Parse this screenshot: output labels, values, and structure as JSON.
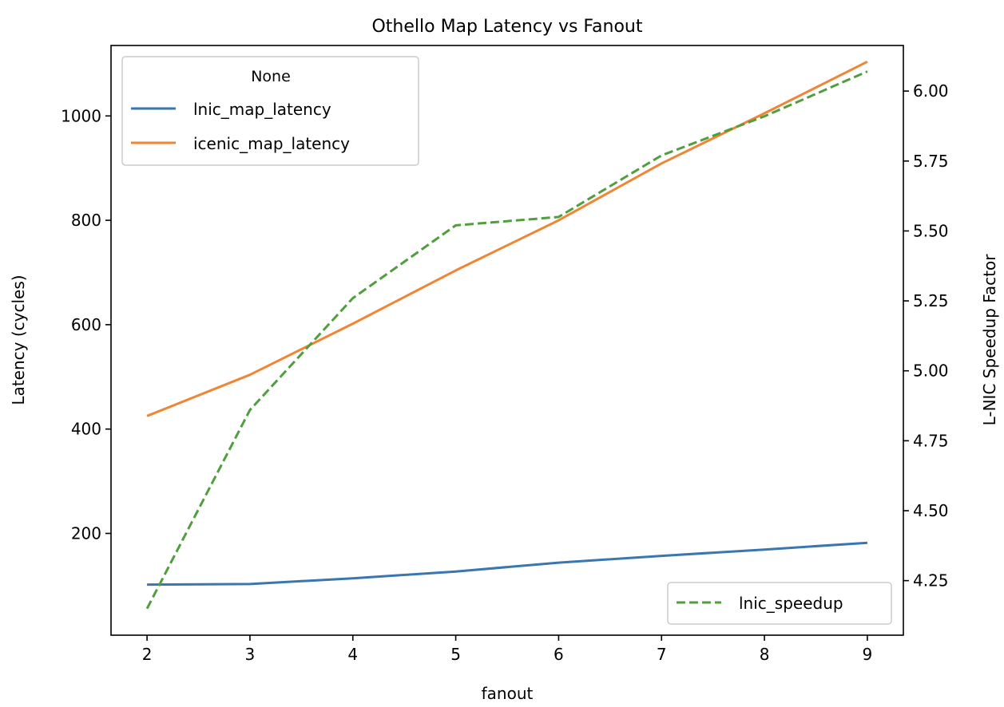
{
  "chart_data": {
    "type": "line",
    "title": "Othello Map Latency vs Fanout",
    "xlabel": "fanout",
    "ylabel": "Latency (cycles)",
    "y2label": "L-NIC Speedup Factor",
    "x": [
      2,
      3,
      4,
      5,
      6,
      7,
      8,
      9
    ],
    "xticks": [
      "2",
      "3",
      "4",
      "5",
      "6",
      "7",
      "8",
      "9"
    ],
    "xlim": [
      1.65,
      9.35
    ],
    "ylim": [
      5,
      1135
    ],
    "yticks": [
      200,
      400,
      600,
      800,
      1000
    ],
    "y2lim": [
      4.055,
      6.163
    ],
    "y2ticks": [
      "4.25",
      "4.50",
      "4.75",
      "5.00",
      "5.25",
      "5.50",
      "5.75",
      "6.00"
    ],
    "grid": false,
    "legend_left": {
      "title": "None",
      "placement": "upper left",
      "entries": [
        "lnic_map_latency",
        "icenic_map_latency"
      ]
    },
    "legend_right": {
      "placement": "lower right",
      "entries": [
        "lnic_speedup"
      ]
    },
    "series": [
      {
        "name": "lnic_map_latency",
        "axis": "left",
        "color": "#3a76af",
        "dash": "solid",
        "values": [
          102,
          103,
          114,
          127,
          144,
          157,
          169,
          182
        ]
      },
      {
        "name": "icenic_map_latency",
        "axis": "left",
        "color": "#ef8636",
        "dash": "solid",
        "values": [
          425,
          504,
          602,
          704,
          800,
          909,
          1005,
          1104
        ]
      },
      {
        "name": "lnic_speedup",
        "axis": "right",
        "color": "#519e3e",
        "dash": "dashed",
        "values": [
          4.15,
          4.86,
          5.26,
          5.52,
          5.55,
          5.77,
          5.91,
          6.07
        ]
      }
    ]
  }
}
